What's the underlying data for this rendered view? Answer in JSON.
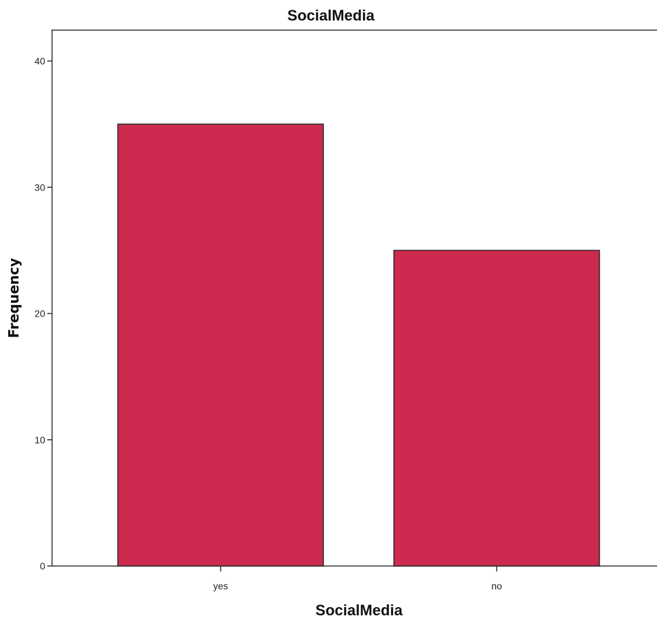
{
  "chart_data": {
    "type": "bar",
    "title": "SocialMedia",
    "xlabel": "SocialMedia",
    "ylabel": "Frequency",
    "categories": [
      "yes",
      "no"
    ],
    "values": [
      35,
      25
    ],
    "ylim": [
      0,
      40
    ],
    "yticks": [
      "0",
      "10",
      "20",
      "30",
      "40"
    ],
    "bar_color": "#cc2a4e",
    "grid": false
  }
}
